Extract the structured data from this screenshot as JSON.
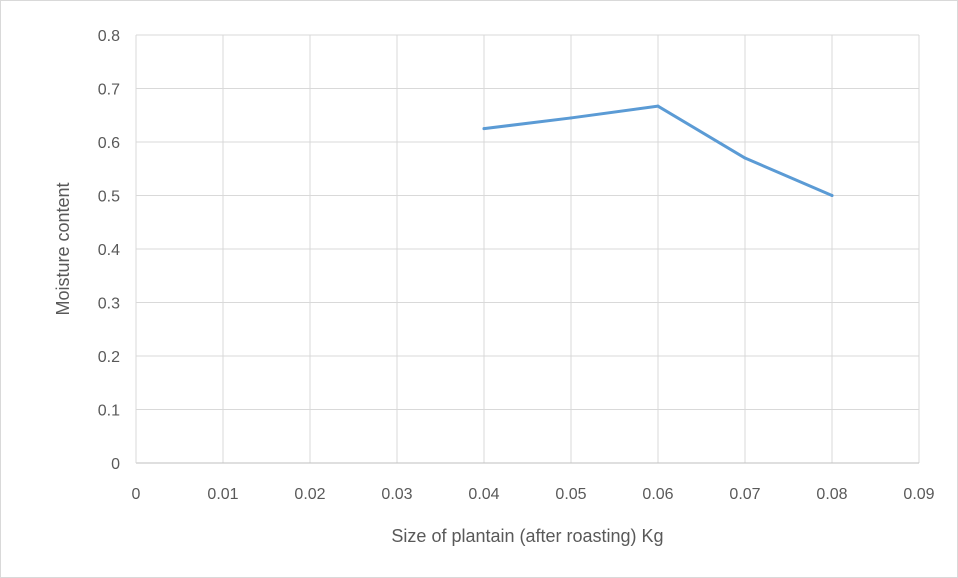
{
  "chart_data": {
    "type": "line",
    "title": "",
    "xlabel": "Size of plantain (after roasting) Kg",
    "ylabel": "Moisture content",
    "xlim": [
      0,
      0.09
    ],
    "ylim": [
      0,
      0.8
    ],
    "x_ticks": [
      "0",
      "0.01",
      "0.02",
      "0.03",
      "0.04",
      "0.05",
      "0.06",
      "0.07",
      "0.08",
      "0.09"
    ],
    "y_ticks": [
      "0",
      "0.1",
      "0.2",
      "0.3",
      "0.4",
      "0.5",
      "0.6",
      "0.7",
      "0.8"
    ],
    "grid": true,
    "legend": "none",
    "series": [
      {
        "color": "#5b9bd5",
        "x": [
          0.04,
          0.05,
          0.06,
          0.07,
          0.08
        ],
        "y": [
          0.625,
          0.645,
          0.667,
          0.57,
          0.5
        ]
      }
    ]
  }
}
